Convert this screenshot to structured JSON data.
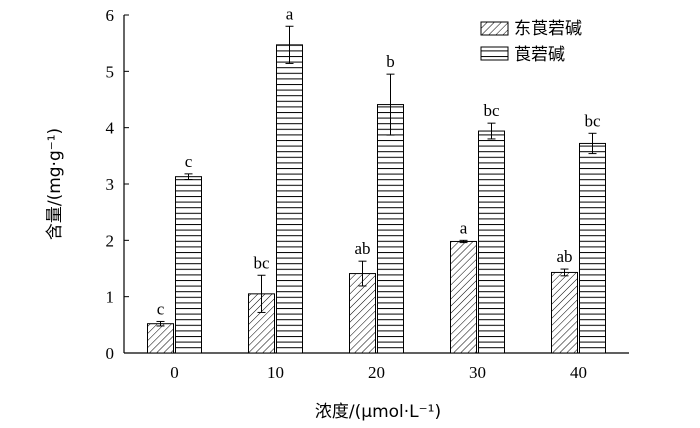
{
  "chart_data": {
    "type": "bar",
    "categories": [
      "0",
      "10",
      "20",
      "30",
      "40"
    ],
    "series": [
      {
        "name": "东莨菪碱",
        "values": [
          0.52,
          1.05,
          1.41,
          1.98,
          1.43
        ],
        "errors": [
          0.04,
          0.33,
          0.22,
          0.02,
          0.06
        ],
        "letters": [
          "c",
          "bc",
          "ab",
          "a",
          "ab"
        ],
        "pattern": "diagonal-hatch"
      },
      {
        "name": "莨菪碱",
        "values": [
          3.13,
          5.47,
          4.41,
          3.94,
          3.72
        ],
        "errors": [
          0.05,
          0.33,
          0.54,
          0.14,
          0.18
        ],
        "letters": [
          "c",
          "a",
          "b",
          "bc",
          "bc"
        ],
        "pattern": "horizontal-lines"
      }
    ],
    "xlabel": "浓度/(μmol·L⁻¹)",
    "ylabel": "含量/(mg·g⁻¹)",
    "ylim": [
      0,
      6
    ],
    "yticks": [
      "0",
      "1",
      "2",
      "3",
      "4",
      "5",
      "6"
    ],
    "grid": false,
    "legend_position": "top-right",
    "colors": {
      "bar_fill": "#ffffff",
      "stroke": "#000000"
    }
  }
}
